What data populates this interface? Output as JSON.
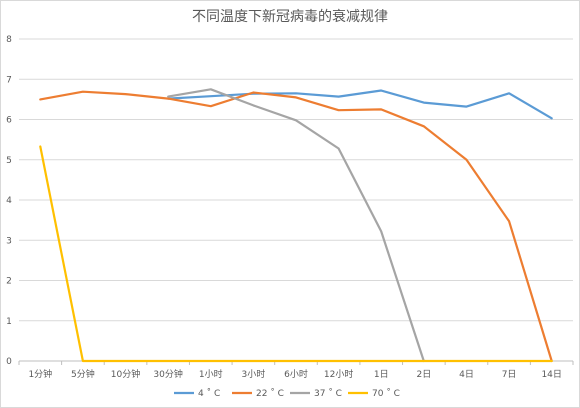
{
  "chart_data": {
    "type": "line",
    "title": "不同温度下新冠病毒的衰减规律",
    "xlabel": "",
    "ylabel": "",
    "categories": [
      "1分钟",
      "5分钟",
      "10分钟",
      "30分钟",
      "1小时",
      "3小时",
      "6小时",
      "12小时",
      "1日",
      "2日",
      "4日",
      "7日",
      "14日"
    ],
    "ylim": [
      0,
      8
    ],
    "yticks": [
      0,
      1,
      2,
      3,
      4,
      5,
      6,
      7,
      8
    ],
    "grid": true,
    "legend_position": "bottom",
    "series": [
      {
        "name": "4 ˚ C",
        "color": "#5b9bd5",
        "values": [
          null,
          null,
          null,
          6.52,
          6.58,
          6.64,
          6.65,
          6.57,
          6.72,
          6.42,
          6.32,
          6.65,
          6.03
        ]
      },
      {
        "name": "22 ˚ C",
        "color": "#ed7d31",
        "values": [
          6.5,
          6.69,
          6.63,
          6.52,
          6.33,
          6.67,
          6.55,
          6.23,
          6.25,
          5.83,
          5.0,
          3.47,
          0
        ]
      },
      {
        "name": "37 ˚ C",
        "color": "#a5a5a5",
        "values": [
          null,
          null,
          null,
          6.57,
          6.75,
          6.35,
          5.98,
          5.28,
          3.22,
          0,
          null,
          null,
          null
        ]
      },
      {
        "name": "70 ˚ C",
        "color": "#ffc000",
        "values": [
          5.33,
          0,
          0,
          0,
          0,
          0,
          0,
          0,
          0,
          0,
          0,
          0,
          0
        ]
      }
    ]
  }
}
